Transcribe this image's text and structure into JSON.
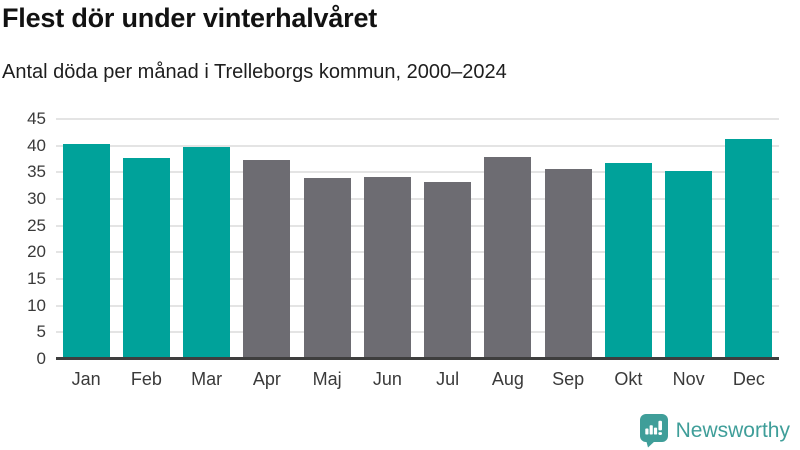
{
  "header": {
    "title": "Flest dör under vinterhalvåret",
    "subtitle": "Antal döda per månad i Trelleborgs kommun, 2000–2024"
  },
  "chart_data": {
    "type": "bar",
    "title": "Flest dör under vinterhalvåret",
    "subtitle": "Antal döda per månad i Trelleborgs kommun, 2000–2024",
    "categories": [
      "Jan",
      "Feb",
      "Mar",
      "Apr",
      "Maj",
      "Jun",
      "Jul",
      "Aug",
      "Sep",
      "Okt",
      "Nov",
      "Dec"
    ],
    "values": [
      40.3,
      37.7,
      39.7,
      37.3,
      33.9,
      34.1,
      33.2,
      37.9,
      35.6,
      36.8,
      35.2,
      41.2
    ],
    "bar_color_keys": [
      "winter",
      "winter",
      "winter",
      "summer",
      "summer",
      "summer",
      "summer",
      "summer",
      "summer",
      "winter",
      "winter",
      "winter"
    ],
    "colors": {
      "winter": "#00a29a",
      "summer": "#6d6c72"
    },
    "xlabel": "",
    "ylabel": "",
    "ylim": [
      0,
      45
    ],
    "yticks": [
      0,
      5,
      10,
      15,
      20,
      25,
      30,
      35,
      40,
      45
    ],
    "grid": "horizontal",
    "legend": "none"
  },
  "style": {
    "gridline_color": "#e4e4e4",
    "baseline_color": "#3e3e3e",
    "axis_text_color": "#3a3a3a",
    "title_color": "#121212",
    "background": "#ffffff"
  },
  "footer": {
    "logo_text": "Newsworthy",
    "logo_color": "#3f9e99"
  }
}
